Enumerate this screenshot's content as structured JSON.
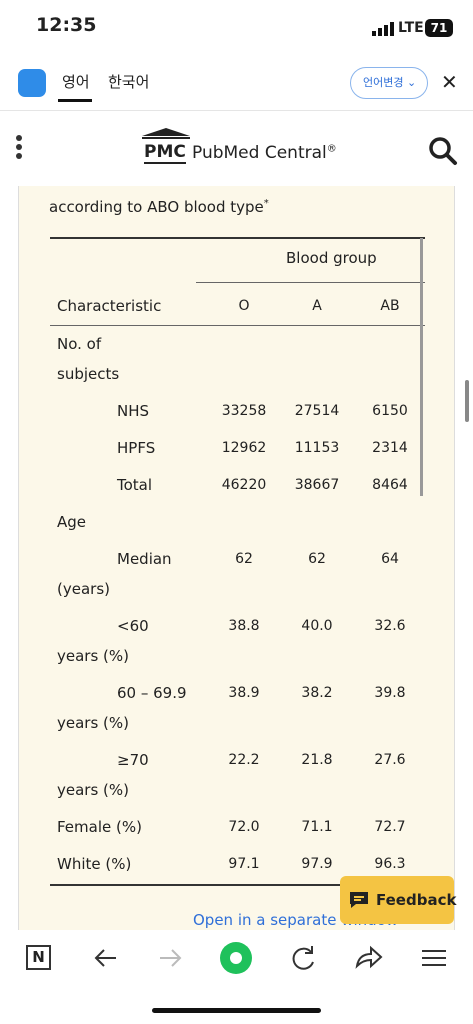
{
  "status_bar": {
    "time": "12:35",
    "network": "LTE",
    "battery": "71"
  },
  "translate_bar": {
    "tabs": [
      "영어",
      "한국어"
    ],
    "button": "언어변경"
  },
  "header": {
    "logo": "PMC",
    "brand": "PubMed Central",
    "mark": "®"
  },
  "article": {
    "caption": "according to ABO blood type",
    "footnote": "*",
    "table": {
      "group_header": "Blood group",
      "columns": [
        "Characteristic",
        "O",
        "A",
        "AB"
      ],
      "rows": [
        {
          "label": "No. of",
          "continuation": "subjects"
        },
        {
          "label": "NHS",
          "values": [
            "33258",
            "27514",
            "6150"
          ]
        },
        {
          "label": "HPFS",
          "values": [
            "12962",
            "11153",
            "2314"
          ]
        },
        {
          "label": "Total",
          "values": [
            "46220",
            "38667",
            "8464"
          ]
        },
        {
          "label": "Age"
        },
        {
          "label": "Median",
          "continuation": "(years)",
          "values": [
            "62",
            "62",
            "64"
          ]
        },
        {
          "label": "<60",
          "continuation": "years (%)",
          "values": [
            "38.8",
            "40.0",
            "32.6"
          ]
        },
        {
          "label": "60 – 69.9",
          "continuation": "years (%)",
          "values": [
            "38.9",
            "38.2",
            "39.8"
          ]
        },
        {
          "label": "≥70",
          "continuation": "years (%)",
          "values": [
            "22.2",
            "21.8",
            "27.6"
          ]
        },
        {
          "label": "Female (%)",
          "values": [
            "72.0",
            "71.1",
            "72.7"
          ]
        },
        {
          "label": "White (%)",
          "values": [
            "97.1",
            "97.9",
            "96.3"
          ]
        }
      ]
    },
    "link": "Open in a separate window"
  },
  "feedback": "Feedback",
  "bottom_nav": {
    "logo": "N"
  }
}
